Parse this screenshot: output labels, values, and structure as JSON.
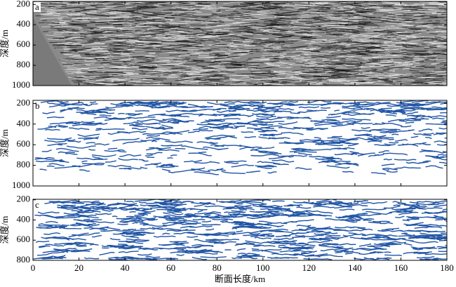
{
  "chart_data": [
    {
      "type": "image",
      "label": "a",
      "ylabel": "深度/m",
      "ylim": [
        170,
        1000
      ],
      "yticks": [
        200,
        400,
        600,
        800,
        1000
      ],
      "xlim": [
        0,
        180
      ],
      "xticks": [
        0,
        20,
        40,
        60,
        80,
        100,
        120,
        140,
        160,
        180
      ],
      "color": "#8a8a8a"
    },
    {
      "type": "image",
      "label": "b",
      "ylabel": "深度/m",
      "ylim": [
        170,
        1000
      ],
      "yticks": [
        200,
        400,
        600,
        800,
        1000
      ],
      "xlim": [
        0,
        180
      ],
      "xticks": [
        0,
        20,
        40,
        60,
        80,
        100,
        120,
        140,
        160,
        180
      ],
      "color": "#2155a5"
    },
    {
      "type": "image",
      "label": "c",
      "ylabel": "深度/m",
      "ylim": [
        195,
        800
      ],
      "yticks": [
        200,
        400,
        600,
        800
      ],
      "xlim": [
        0,
        180
      ],
      "xticks": [
        0,
        20,
        40,
        60,
        80,
        100,
        120,
        140,
        160,
        180
      ],
      "xlabel": "断面长度/km",
      "color": "#2155a5"
    }
  ]
}
